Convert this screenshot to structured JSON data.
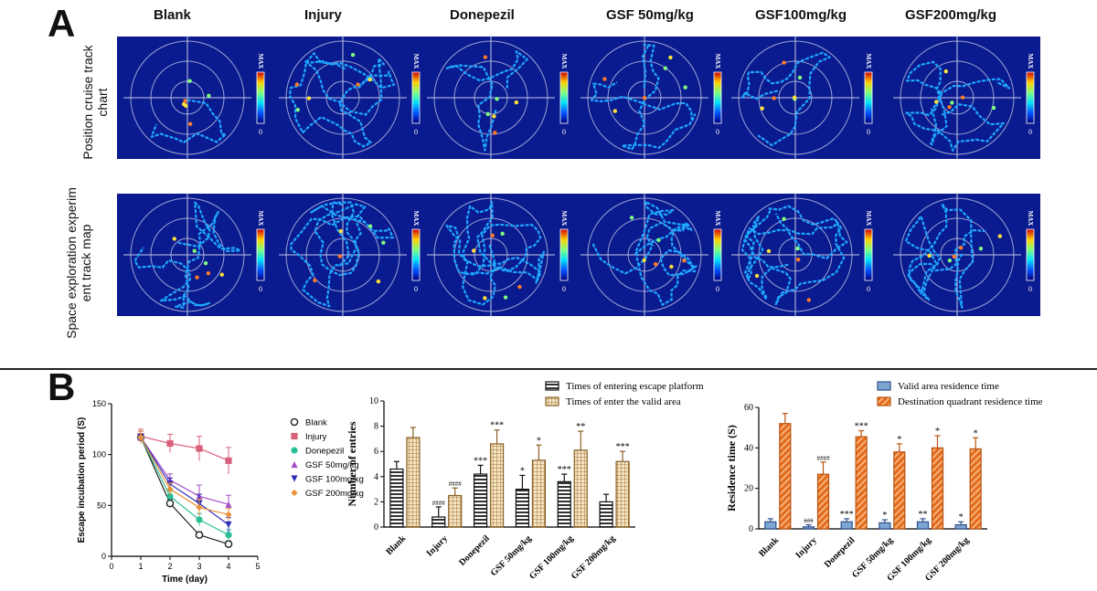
{
  "panel_a": {
    "letter": "A",
    "columns": [
      "Blank",
      "Injury",
      "Donepezil",
      "GSF 50mg/kg",
      "GSF100mg/kg",
      "GSF200mg/kg"
    ],
    "rows": [
      {
        "label_lines": [
          "Position cruise track chart"
        ]
      },
      {
        "label_lines": [
          "Space exploration experim",
          "ent track map"
        ]
      }
    ],
    "colorbar_top": "MAX",
    "colorbar_bottom": "0"
  },
  "panel_b": {
    "letter": "B"
  },
  "chart_data": [
    {
      "type": "line",
      "xlabel": "Time (day)",
      "ylabel": "Escape incubation period (S)",
      "xlim": [
        0,
        5
      ],
      "ylim": [
        0,
        150
      ],
      "x_ticks": [
        "0",
        "1",
        "2",
        "3",
        "4",
        "5"
      ],
      "y_ticks": [
        "0",
        "50",
        "100",
        "150"
      ],
      "x": [
        1,
        2,
        3,
        4
      ],
      "legend_position": "right",
      "series": [
        {
          "name": "Blank",
          "values": [
            117,
            52,
            21,
            12
          ],
          "err": [
            6,
            4,
            3,
            3
          ],
          "color": "#222222",
          "marker": "circle-open"
        },
        {
          "name": "Injury",
          "values": [
            118,
            111,
            106,
            94
          ],
          "err": [
            7,
            9,
            12,
            13
          ],
          "color": "#d9607a",
          "marker": "square"
        },
        {
          "name": "Donepezil",
          "values": [
            117,
            59,
            36,
            21
          ],
          "err": [
            6,
            5,
            6,
            5
          ],
          "color": "#2bbf97",
          "marker": "circle"
        },
        {
          "name": "GSF 50mg/kg",
          "values": [
            117,
            75,
            59,
            51
          ],
          "err": [
            6,
            6,
            11,
            9
          ],
          "color": "#a64fc9",
          "marker": "triangle-up"
        },
        {
          "name": "GSF 100mg/kg",
          "values": [
            117,
            71,
            52,
            31
          ],
          "err": [
            6,
            6,
            9,
            7
          ],
          "color": "#2e2eb8",
          "marker": "triangle-down"
        },
        {
          "name": "GSF 200mg/kg",
          "values": [
            117,
            66,
            48,
            41
          ],
          "err": [
            6,
            6,
            8,
            6
          ],
          "color": "#e8913a",
          "marker": "diamond"
        }
      ]
    },
    {
      "type": "bar",
      "ylabel": "Number of entries",
      "ylim": [
        0,
        10
      ],
      "y_ticks": [
        "0",
        "2",
        "4",
        "6",
        "8",
        "10"
      ],
      "categories": [
        "Blank",
        "Injury",
        "Donepezil",
        "GSF 50mg/kg",
        "GSF 100mg/kg",
        "GSF 200mg/kg"
      ],
      "legend_position": "top",
      "series": [
        {
          "name": "Times of entering escape platform",
          "values": [
            4.6,
            0.8,
            4.2,
            3.0,
            3.6,
            2.0
          ],
          "err": [
            0.6,
            0.8,
            0.7,
            1.1,
            0.6,
            0.6
          ],
          "labels": [
            "",
            "####",
            "***",
            "*",
            "***",
            ""
          ],
          "pattern": "hstripes"
        },
        {
          "name": "Times of enter the valid area",
          "values": [
            7.1,
            2.5,
            6.6,
            5.3,
            6.1,
            5.2
          ],
          "err": [
            0.8,
            0.6,
            1.1,
            1.2,
            1.5,
            0.8
          ],
          "labels": [
            "",
            "####",
            "***",
            "*",
            "**",
            "***"
          ],
          "pattern": "grid"
        }
      ]
    },
    {
      "type": "bar",
      "ylabel": "Residence time (S)",
      "ylim": [
        0,
        60
      ],
      "y_ticks": [
        "0",
        "20",
        "40",
        "60"
      ],
      "categories": [
        "Blank",
        "Injury",
        "Donepezil",
        "GSF 50mg/kg",
        "GSF 100mg/kg",
        "GSF 200mg/kg"
      ],
      "legend_position": "top",
      "series": [
        {
          "name": "Valid area residence time",
          "values": [
            3.5,
            1.0,
            3.5,
            3.0,
            3.5,
            2.0
          ],
          "err": [
            1.5,
            1.0,
            1.5,
            1.5,
            1.5,
            1.5
          ],
          "labels": [
            "",
            "###",
            "***",
            "*",
            "**",
            "*"
          ],
          "pattern": "solid-blue"
        },
        {
          "name": "Destination quadrant residence time",
          "values": [
            52,
            27,
            45.5,
            38,
            40,
            39.5
          ],
          "err": [
            5,
            6,
            3,
            4,
            6,
            5.5
          ],
          "labels": [
            "",
            "####",
            "***",
            "*",
            "*",
            "*"
          ],
          "pattern": "diag-orange"
        }
      ]
    }
  ]
}
